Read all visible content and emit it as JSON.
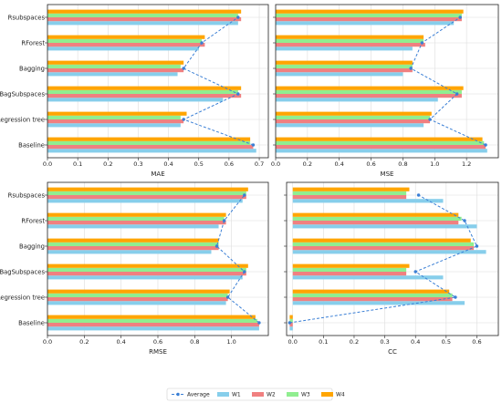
{
  "chart_data": [
    {
      "type": "bar",
      "orientation": "horizontal",
      "xlabel": "MAE",
      "xlim": [
        0,
        0.73
      ],
      "xticks": [
        "0.0",
        "0.1",
        "0.2",
        "0.3",
        "0.4",
        "0.5",
        "0.6",
        "0.7"
      ],
      "grid": true,
      "categories": [
        "Baseline",
        "Regression tree",
        "BagSubspaces",
        "Bagging",
        "RForest",
        "Rsubspaces"
      ],
      "series": [
        {
          "name": "W1",
          "values": [
            0.69,
            0.44,
            0.58,
            0.43,
            0.5,
            0.63
          ]
        },
        {
          "name": "W2",
          "values": [
            0.68,
            0.45,
            0.64,
            0.45,
            0.52,
            0.64
          ]
        },
        {
          "name": "W3",
          "values": [
            0.67,
            0.44,
            0.63,
            0.44,
            0.51,
            0.63
          ]
        },
        {
          "name": "W4",
          "values": [
            0.67,
            0.46,
            0.64,
            0.45,
            0.52,
            0.64
          ]
        }
      ],
      "average": [
        0.68,
        0.45,
        0.63,
        0.45,
        0.51,
        0.63
      ]
    },
    {
      "type": "bar",
      "orientation": "horizontal",
      "xlabel": "MSE",
      "xlim": [
        0,
        1.4
      ],
      "xticks": [
        "0.0",
        "0.2",
        "0.4",
        "0.6",
        "0.8",
        "1.0",
        "1.2"
      ],
      "grid": true,
      "categories": [
        "Baseline",
        "Regression tree",
        "BagSubspaces",
        "Bagging",
        "RForest",
        "Rsubspaces"
      ],
      "series": [
        {
          "name": "W1",
          "values": [
            1.33,
            0.93,
            1.02,
            0.8,
            0.86,
            1.12
          ]
        },
        {
          "name": "W2",
          "values": [
            1.32,
            0.97,
            1.17,
            0.86,
            0.94,
            1.17
          ]
        },
        {
          "name": "W3",
          "values": [
            1.31,
            0.97,
            1.17,
            0.86,
            0.93,
            1.17
          ]
        },
        {
          "name": "W4",
          "values": [
            1.3,
            0.98,
            1.18,
            0.86,
            0.93,
            1.18
          ]
        }
      ],
      "average": [
        1.32,
        0.97,
        1.14,
        0.85,
        0.92,
        1.16
      ]
    },
    {
      "type": "bar",
      "orientation": "horizontal",
      "xlabel": "RMSE",
      "xlim": [
        0,
        1.2
      ],
      "xticks": [
        "0.0",
        "0.2",
        "0.4",
        "0.6",
        "0.8",
        "1.0"
      ],
      "grid": true,
      "categories": [
        "Baseline",
        "Regression tree",
        "BagSubspaces",
        "Bagging",
        "RForest",
        "Rsubspaces"
      ],
      "series": [
        {
          "name": "W1",
          "values": [
            1.15,
            0.97,
            1.06,
            0.89,
            0.93,
            1.06
          ]
        },
        {
          "name": "W2",
          "values": [
            1.15,
            0.98,
            1.08,
            0.93,
            0.97,
            1.08
          ]
        },
        {
          "name": "W3",
          "values": [
            1.14,
            0.98,
            1.08,
            0.93,
            0.96,
            1.08
          ]
        },
        {
          "name": "W4",
          "values": [
            1.13,
            0.99,
            1.09,
            0.93,
            0.97,
            1.09
          ]
        }
      ],
      "average": [
        1.15,
        0.98,
        1.07,
        0.92,
        0.96,
        1.07
      ]
    },
    {
      "type": "bar",
      "orientation": "horizontal",
      "xlabel": "CC",
      "xlim": [
        -0.02,
        0.67
      ],
      "xticks": [
        "0.0",
        "0.1",
        "0.2",
        "0.3",
        "0.4",
        "0.5",
        "0.6"
      ],
      "grid": true,
      "categories": [
        "Baseline",
        "Regression tree",
        "BagSubspaces",
        "Bagging",
        "RForest",
        "Rsubspaces"
      ],
      "series": [
        {
          "name": "W1",
          "values": [
            -0.01,
            0.56,
            0.49,
            0.63,
            0.6,
            0.49
          ]
        },
        {
          "name": "W2",
          "values": [
            -0.01,
            0.52,
            0.37,
            0.59,
            0.54,
            0.37
          ]
        },
        {
          "name": "W3",
          "values": [
            -0.01,
            0.52,
            0.37,
            0.59,
            0.55,
            0.37
          ]
        },
        {
          "name": "W4",
          "values": [
            -0.01,
            0.51,
            0.38,
            0.58,
            0.54,
            0.38
          ]
        }
      ],
      "average": [
        -0.01,
        0.53,
        0.4,
        0.6,
        0.56,
        0.41
      ]
    }
  ],
  "legend": {
    "items": [
      {
        "label": "Average",
        "kind": "line"
      },
      {
        "label": "W1",
        "kind": "bar"
      },
      {
        "label": "W2",
        "kind": "bar"
      },
      {
        "label": "W3",
        "kind": "bar"
      },
      {
        "label": "W4",
        "kind": "bar"
      }
    ],
    "placement": "bottom-center"
  },
  "colors": {
    "W1": "#87ceeb",
    "W2": "#f08080",
    "W3": "#90ee90",
    "W4": "#ffa500",
    "Average": "#3a7fd5",
    "grid": "#dddddd",
    "axis": "#222222"
  }
}
